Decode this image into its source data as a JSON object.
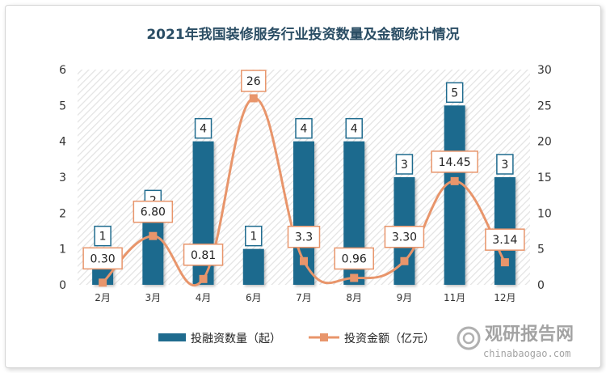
{
  "chart_data": {
    "type": "bar+line",
    "title": "2021年我国装修服务行业投资数量及金额统计情况",
    "categories": [
      "2月",
      "3月",
      "4月",
      "6月",
      "7月",
      "8月",
      "9月",
      "11月",
      "12月"
    ],
    "series": [
      {
        "name": "投融资数量（起）",
        "type": "bar",
        "axis": "left",
        "values": [
          1,
          2,
          4,
          1,
          4,
          4,
          3,
          5,
          3
        ],
        "labels": [
          "1",
          "2",
          "4",
          "1",
          "4",
          "4",
          "3",
          "5",
          "3"
        ],
        "color": "#1f6b8e"
      },
      {
        "name": "投资金额（亿元）",
        "type": "line",
        "axis": "right",
        "values": [
          0.3,
          6.8,
          0.81,
          26,
          3.3,
          0.96,
          3.3,
          14.45,
          3.14
        ],
        "labels": [
          "0.30",
          "6.80",
          "0.81",
          "26",
          "3.3",
          "0.96",
          "3.30",
          "14.45",
          "3.14"
        ],
        "color": "#e8956b"
      }
    ],
    "y_left": {
      "min": 0,
      "max": 6,
      "ticks": [
        0,
        1,
        2,
        3,
        4,
        5,
        6
      ]
    },
    "y_right": {
      "min": 0,
      "max": 30,
      "ticks": [
        0,
        5,
        10,
        15,
        20,
        25,
        30
      ]
    },
    "legend": "bottom-center",
    "grid": false
  },
  "watermark": {
    "cn": "观研报告网",
    "en": "chinabaogao.com"
  }
}
